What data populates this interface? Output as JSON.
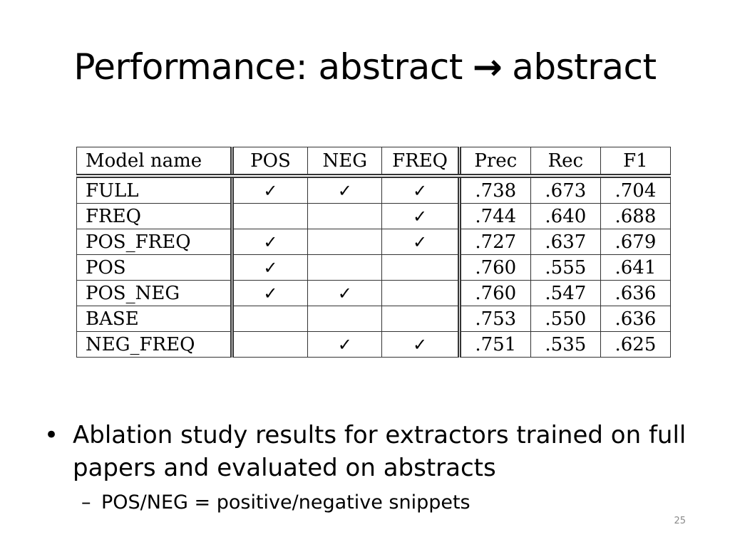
{
  "title": {
    "left": "Performance: abstract",
    "arrow": "→",
    "right": "abstract"
  },
  "table": {
    "headers": [
      "Model name",
      "POS",
      "NEG",
      "FREQ",
      "Prec",
      "Rec",
      "F1"
    ],
    "check_symbol": "✓",
    "rows": [
      {
        "name": "FULL",
        "pos": true,
        "neg": true,
        "freq": true,
        "prec": ".738",
        "rec": ".673",
        "f1": ".704"
      },
      {
        "name": "FREQ",
        "pos": false,
        "neg": false,
        "freq": true,
        "prec": ".744",
        "rec": ".640",
        "f1": ".688"
      },
      {
        "name": "POS_FREQ",
        "pos": true,
        "neg": false,
        "freq": true,
        "prec": ".727",
        "rec": ".637",
        "f1": ".679"
      },
      {
        "name": "POS",
        "pos": true,
        "neg": false,
        "freq": false,
        "prec": ".760",
        "rec": ".555",
        "f1": ".641"
      },
      {
        "name": "POS_NEG",
        "pos": true,
        "neg": true,
        "freq": false,
        "prec": ".760",
        "rec": ".547",
        "f1": ".636"
      },
      {
        "name": "BASE",
        "pos": false,
        "neg": false,
        "freq": false,
        "prec": ".753",
        "rec": ".550",
        "f1": ".636"
      },
      {
        "name": "NEG_FREQ",
        "pos": false,
        "neg": true,
        "freq": true,
        "prec": ".751",
        "rec": ".535",
        "f1": ".625"
      }
    ]
  },
  "bullets": {
    "main": "Ablation study results for extractors trained on full papers and evaluated on abstracts",
    "sub": "POS/NEG = positive/negative snippets"
  },
  "page_number": "25"
}
